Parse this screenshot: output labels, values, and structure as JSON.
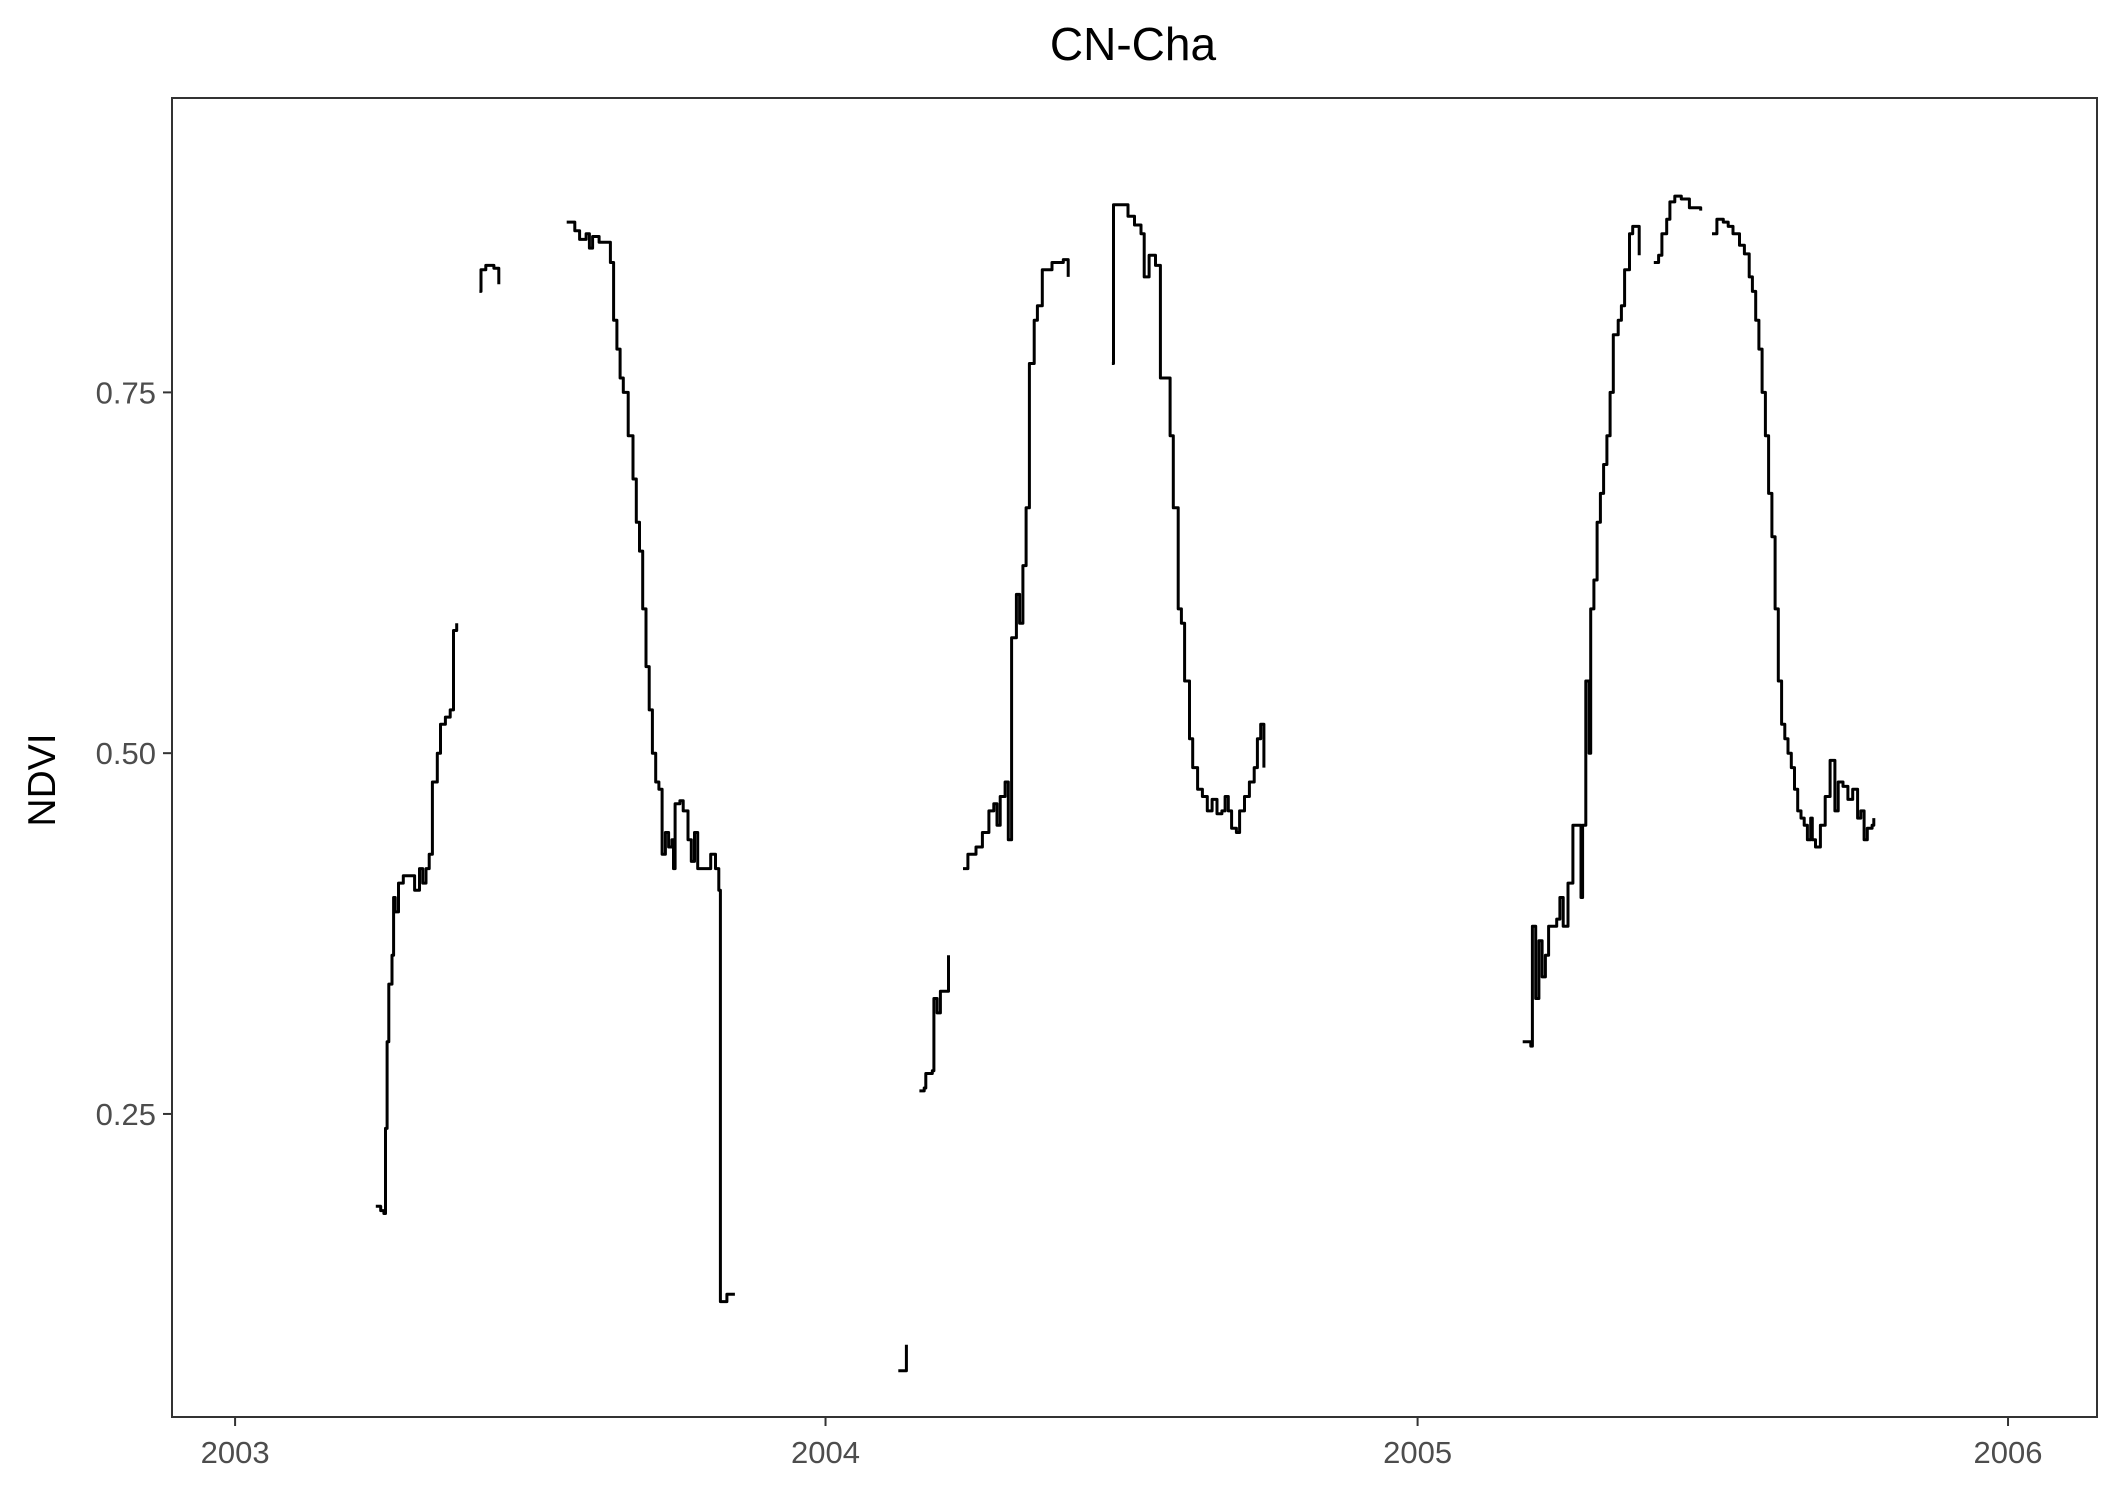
{
  "chart_data": {
    "type": "line",
    "title": "CN-Cha",
    "xlabel": "",
    "ylabel": "NDVI",
    "x_unit": "date",
    "xlim": [
      "2002-11-23",
      "2006-02-25"
    ],
    "ylim": [
      0.04,
      0.954
    ],
    "grid": false,
    "legend": "none",
    "line_color": "#000000",
    "x_ticks": [
      {
        "value": "2003-01-01",
        "label": "2003"
      },
      {
        "value": "2004-01-01",
        "label": "2004"
      },
      {
        "value": "2005-01-01",
        "label": "2005"
      },
      {
        "value": "2006-01-01",
        "label": "2006"
      }
    ],
    "y_ticks": [
      {
        "value": 0.25,
        "label": "0.25"
      },
      {
        "value": 0.5,
        "label": "0.50"
      },
      {
        "value": 0.75,
        "label": "0.75"
      }
    ],
    "series": [
      {
        "segments": [
          [
            [
              "2003-03-29",
              0.186
            ],
            [
              "2003-04-01",
              0.183
            ],
            [
              "2003-04-03",
              0.181
            ],
            [
              "2003-04-04",
              0.24
            ],
            [
              "2003-04-05",
              0.3
            ],
            [
              "2003-04-06",
              0.34
            ],
            [
              "2003-04-08",
              0.36
            ],
            [
              "2003-04-09",
              0.4
            ],
            [
              "2003-04-10",
              0.39
            ],
            [
              "2003-04-12",
              0.41
            ],
            [
              "2003-04-15",
              0.415
            ],
            [
              "2003-04-20",
              0.415
            ],
            [
              "2003-04-22",
              0.405
            ],
            [
              "2003-04-25",
              0.42
            ],
            [
              "2003-04-27",
              0.41
            ],
            [
              "2003-04-29",
              0.42
            ],
            [
              "2003-05-01",
              0.43
            ],
            [
              "2003-05-03",
              0.48
            ],
            [
              "2003-05-06",
              0.5
            ],
            [
              "2003-05-08",
              0.52
            ],
            [
              "2003-05-11",
              0.525
            ],
            [
              "2003-05-14",
              0.53
            ],
            [
              "2003-05-16",
              0.585
            ],
            [
              "2003-05-18",
              0.59
            ]
          ],
          [
            [
              "2003-06-01",
              0.82
            ],
            [
              "2003-06-02",
              0.835
            ],
            [
              "2003-06-05",
              0.838
            ],
            [
              "2003-06-10",
              0.836
            ],
            [
              "2003-06-13",
              0.835
            ],
            [
              "2003-06-13",
              0.825
            ]
          ],
          [
            [
              "2003-07-25",
              0.868
            ],
            [
              "2003-07-30",
              0.862
            ],
            [
              "2003-08-02",
              0.856
            ],
            [
              "2003-08-06",
              0.86
            ],
            [
              "2003-08-08",
              0.85
            ],
            [
              "2003-08-10",
              0.858
            ],
            [
              "2003-08-14",
              0.854
            ],
            [
              "2003-08-19",
              0.854
            ],
            [
              "2003-08-21",
              0.84
            ],
            [
              "2003-08-23",
              0.8
            ],
            [
              "2003-08-25",
              0.78
            ],
            [
              "2003-08-27",
              0.76
            ],
            [
              "2003-08-29",
              0.75
            ],
            [
              "2003-09-01",
              0.72
            ],
            [
              "2003-09-04",
              0.69
            ],
            [
              "2003-09-06",
              0.66
            ],
            [
              "2003-09-08",
              0.64
            ],
            [
              "2003-09-10",
              0.6
            ],
            [
              "2003-09-12",
              0.56
            ],
            [
              "2003-09-14",
              0.53
            ],
            [
              "2003-09-16",
              0.5
            ],
            [
              "2003-09-18",
              0.48
            ],
            [
              "2003-09-20",
              0.475
            ],
            [
              "2003-09-22",
              0.43
            ],
            [
              "2003-09-24",
              0.445
            ],
            [
              "2003-09-26",
              0.435
            ],
            [
              "2003-09-28",
              0.44
            ],
            [
              "2003-09-29",
              0.42
            ],
            [
              "2003-09-30",
              0.465
            ],
            [
              "2003-10-03",
              0.467
            ],
            [
              "2003-10-05",
              0.46
            ],
            [
              "2003-10-08",
              0.44
            ],
            [
              "2003-10-10",
              0.425
            ],
            [
              "2003-10-12",
              0.445
            ],
            [
              "2003-10-14",
              0.42
            ],
            [
              "2003-10-20",
              0.42
            ],
            [
              "2003-10-22",
              0.43
            ],
            [
              "2003-10-25",
              0.42
            ],
            [
              "2003-10-27",
              0.405
            ],
            [
              "2003-10-28",
              0.12
            ],
            [
              "2003-10-31",
              0.12
            ],
            [
              "2003-11-01",
              0.125
            ],
            [
              "2003-11-06",
              0.125
            ]
          ]
        ]
      },
      {
        "segments": [
          [
            [
              "2004-02-15",
              0.072
            ],
            [
              "2004-02-18",
              0.072
            ],
            [
              "2004-02-20",
              0.09
            ]
          ],
          [
            [
              "2004-02-28",
              0.266
            ],
            [
              "2004-03-02",
              0.268
            ],
            [
              "2004-03-03",
              0.278
            ],
            [
              "2004-03-07",
              0.28
            ],
            [
              "2004-03-08",
              0.33
            ],
            [
              "2004-03-10",
              0.32
            ],
            [
              "2004-03-12",
              0.335
            ],
            [
              "2004-03-15",
              0.335
            ],
            [
              "2004-03-17",
              0.36
            ]
          ],
          [
            [
              "2004-03-26",
              0.42
            ],
            [
              "2004-03-29",
              0.43
            ],
            [
              "2004-04-03",
              0.435
            ],
            [
              "2004-04-07",
              0.445
            ],
            [
              "2004-04-11",
              0.46
            ],
            [
              "2004-04-14",
              0.465
            ],
            [
              "2004-04-16",
              0.45
            ],
            [
              "2004-04-18",
              0.47
            ],
            [
              "2004-04-21",
              0.48
            ],
            [
              "2004-04-23",
              0.44
            ],
            [
              "2004-04-25",
              0.58
            ],
            [
              "2004-04-28",
              0.61
            ],
            [
              "2004-04-30",
              0.59
            ],
            [
              "2004-05-02",
              0.63
            ],
            [
              "2004-05-04",
              0.67
            ],
            [
              "2004-05-06",
              0.77
            ],
            [
              "2004-05-09",
              0.8
            ],
            [
              "2004-05-11",
              0.81
            ],
            [
              "2004-05-14",
              0.835
            ],
            [
              "2004-05-20",
              0.84
            ],
            [
              "2004-05-27",
              0.842
            ],
            [
              "2004-05-30",
              0.83
            ]
          ],
          [
            [
              "2004-06-26",
              0.77
            ],
            [
              "2004-06-27",
              0.88
            ],
            [
              "2004-07-02",
              0.88
            ],
            [
              "2004-07-06",
              0.872
            ],
            [
              "2004-07-10",
              0.866
            ],
            [
              "2004-07-14",
              0.86
            ],
            [
              "2004-07-16",
              0.83
            ],
            [
              "2004-07-19",
              0.845
            ],
            [
              "2004-07-23",
              0.838
            ],
            [
              "2004-07-26",
              0.76
            ],
            [
              "2004-07-30",
              0.76
            ],
            [
              "2004-08-01",
              0.72
            ],
            [
              "2004-08-03",
              0.67
            ],
            [
              "2004-08-06",
              0.6
            ],
            [
              "2004-08-08",
              0.59
            ],
            [
              "2004-08-10",
              0.55
            ],
            [
              "2004-08-13",
              0.51
            ],
            [
              "2004-08-15",
              0.49
            ],
            [
              "2004-08-18",
              0.475
            ],
            [
              "2004-08-21",
              0.47
            ],
            [
              "2004-08-24",
              0.46
            ],
            [
              "2004-08-27",
              0.468
            ],
            [
              "2004-08-30",
              0.458
            ],
            [
              "2004-09-02",
              0.46
            ],
            [
              "2004-09-04",
              0.47
            ],
            [
              "2004-09-06",
              0.46
            ],
            [
              "2004-09-08",
              0.448
            ],
            [
              "2004-09-11",
              0.445
            ],
            [
              "2004-09-13",
              0.46
            ],
            [
              "2004-09-16",
              0.47
            ],
            [
              "2004-09-19",
              0.48
            ],
            [
              "2004-09-22",
              0.49
            ],
            [
              "2004-09-24",
              0.51
            ],
            [
              "2004-09-26",
              0.52
            ],
            [
              "2004-09-28",
              0.49
            ]
          ]
        ]
      },
      {
        "segments": [
          [
            [
              "2005-03-07",
              0.3
            ],
            [
              "2005-03-12",
              0.297
            ],
            [
              "2005-03-13",
              0.38
            ],
            [
              "2005-03-15",
              0.33
            ],
            [
              "2005-03-17",
              0.37
            ],
            [
              "2005-03-19",
              0.345
            ],
            [
              "2005-03-21",
              0.36
            ],
            [
              "2005-03-23",
              0.38
            ],
            [
              "2005-03-28",
              0.385
            ],
            [
              "2005-03-30",
              0.4
            ],
            [
              "2005-04-01",
              0.38
            ],
            [
              "2005-04-04",
              0.41
            ],
            [
              "2005-04-07",
              0.45
            ],
            [
              "2005-04-11",
              0.45
            ],
            [
              "2005-04-12",
              0.4
            ],
            [
              "2005-04-13",
              0.45
            ],
            [
              "2005-04-15",
              0.55
            ],
            [
              "2005-04-17",
              0.5
            ],
            [
              "2005-04-18",
              0.6
            ],
            [
              "2005-04-20",
              0.62
            ],
            [
              "2005-04-22",
              0.66
            ],
            [
              "2005-04-24",
              0.68
            ],
            [
              "2005-04-26",
              0.7
            ],
            [
              "2005-04-28",
              0.72
            ],
            [
              "2005-04-30",
              0.75
            ],
            [
              "2005-05-02",
              0.79
            ],
            [
              "2005-05-05",
              0.8
            ],
            [
              "2005-05-07",
              0.81
            ],
            [
              "2005-05-09",
              0.835
            ],
            [
              "2005-05-12",
              0.86
            ],
            [
              "2005-05-14",
              0.865
            ],
            [
              "2005-05-18",
              0.865
            ],
            [
              "2005-05-18",
              0.845
            ]
          ],
          [
            [
              "2005-05-27",
              0.84
            ],
            [
              "2005-05-30",
              0.845
            ],
            [
              "2005-06-01",
              0.86
            ],
            [
              "2005-06-04",
              0.87
            ],
            [
              "2005-06-06",
              0.882
            ],
            [
              "2005-06-09",
              0.886
            ],
            [
              "2005-06-13",
              0.884
            ],
            [
              "2005-06-18",
              0.878
            ],
            [
              "2005-06-25",
              0.876
            ]
          ],
          [
            [
              "2005-07-02",
              0.86
            ],
            [
              "2005-07-05",
              0.87
            ],
            [
              "2005-07-09",
              0.868
            ],
            [
              "2005-07-12",
              0.865
            ],
            [
              "2005-07-15",
              0.86
            ],
            [
              "2005-07-19",
              0.852
            ],
            [
              "2005-07-22",
              0.846
            ],
            [
              "2005-07-25",
              0.83
            ],
            [
              "2005-07-27",
              0.82
            ],
            [
              "2005-07-29",
              0.8
            ],
            [
              "2005-07-31",
              0.78
            ],
            [
              "2005-08-02",
              0.75
            ],
            [
              "2005-08-04",
              0.72
            ],
            [
              "2005-08-06",
              0.68
            ],
            [
              "2005-08-08",
              0.65
            ],
            [
              "2005-08-10",
              0.6
            ],
            [
              "2005-08-12",
              0.55
            ],
            [
              "2005-08-14",
              0.52
            ],
            [
              "2005-08-16",
              0.51
            ],
            [
              "2005-08-18",
              0.5
            ],
            [
              "2005-08-20",
              0.49
            ],
            [
              "2005-08-22",
              0.475
            ],
            [
              "2005-08-24",
              0.46
            ],
            [
              "2005-08-26",
              0.455
            ],
            [
              "2005-08-28",
              0.45
            ],
            [
              "2005-08-30",
              0.44
            ],
            [
              "2005-09-01",
              0.455
            ],
            [
              "2005-09-02",
              0.44
            ],
            [
              "2005-09-04",
              0.435
            ],
            [
              "2005-09-07",
              0.45
            ],
            [
              "2005-09-10",
              0.47
            ],
            [
              "2005-09-13",
              0.495
            ],
            [
              "2005-09-16",
              0.46
            ],
            [
              "2005-09-18",
              0.48
            ],
            [
              "2005-09-21",
              0.477
            ],
            [
              "2005-09-24",
              0.468
            ],
            [
              "2005-09-27",
              0.475
            ],
            [
              "2005-09-30",
              0.455
            ],
            [
              "2005-10-02",
              0.46
            ],
            [
              "2005-10-04",
              0.44
            ],
            [
              "2005-10-06",
              0.448
            ],
            [
              "2005-10-09",
              0.45
            ],
            [
              "2005-10-10",
              0.455
            ]
          ]
        ]
      }
    ]
  }
}
